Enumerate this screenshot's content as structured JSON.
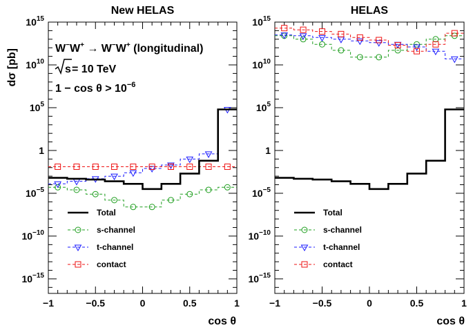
{
  "figure": {
    "ylabel": "dσ [pb]",
    "xlabel": "cos θ"
  },
  "annotations": {
    "process_left": "W",
    "process_left_sup": "−",
    "process_left2": "W",
    "process_left2_sup": "+",
    "arrow": " → ",
    "process_right": "W",
    "process_right_sup": "−",
    "process_right2": "W",
    "process_right2_sup": "+",
    "process_note": " (longitudinal)",
    "sqrt_s_label": "s",
    "energy_text": " = 10 TeV",
    "cut_text": "1 − cos θ > 10",
    "cut_exp": "−6"
  },
  "colors": {
    "total": "#000000",
    "s_channel": "#1e9e1e",
    "t_channel": "#1a1aff",
    "contact": "#ee1111"
  },
  "chart_data": [
    {
      "type": "line",
      "title": "New HELAS",
      "xlabel": "cos θ",
      "ylabel": "dσ [pb]",
      "xlim": [
        -1,
        1
      ],
      "ylim_log10": [
        -16.7,
        15
      ],
      "log_y": true,
      "x_ticks": [
        "−1",
        "−0.5",
        "0",
        "0.5",
        "1"
      ],
      "y_ticks": [
        {
          "value": 15,
          "label": "10",
          "exp": "15"
        },
        {
          "value": 10,
          "label": "10",
          "exp": "10"
        },
        {
          "value": 5,
          "label": "10",
          "exp": "5"
        },
        {
          "value": 0,
          "label": "1",
          "exp": ""
        },
        {
          "value": -5,
          "label": "10",
          "exp": "−5"
        },
        {
          "value": -10,
          "label": "10",
          "exp": "−10"
        },
        {
          "value": -15,
          "label": "10",
          "exp": "−15"
        }
      ],
      "bin_edges": [
        -1,
        -0.8,
        -0.6,
        -0.4,
        -0.2,
        0,
        0.2,
        0.4,
        0.6,
        0.8,
        1
      ],
      "series": [
        {
          "name": "Total",
          "key": "total",
          "style": "solid",
          "marker": "none",
          "log10_values": [
            -3.2,
            -3.3,
            -3.4,
            -3.6,
            -3.9,
            -4.5,
            -3.9,
            -2.7,
            -1.2,
            4.8
          ]
        },
        {
          "name": "s-channel",
          "key": "s_channel",
          "style": "dashed",
          "marker": "circle",
          "log10_values": [
            -4.3,
            -4.6,
            -5.1,
            -5.8,
            -6.6,
            -6.6,
            -5.8,
            -5.1,
            -4.6,
            -4.3
          ]
        },
        {
          "name": "t-channel",
          "key": "t_channel",
          "style": "dashed",
          "marker": "tri-down",
          "log10_values": [
            -3.9,
            -3.6,
            -3.3,
            -3.0,
            -2.6,
            -2.1,
            -1.7,
            -1.0,
            -0.4,
            4.8
          ]
        },
        {
          "name": "contact",
          "key": "contact",
          "style": "dashed",
          "marker": "square",
          "log10_values": [
            -1.9,
            -1.9,
            -1.9,
            -1.9,
            -1.9,
            -1.9,
            -1.9,
            -1.9,
            -1.9,
            -1.9
          ]
        }
      ],
      "legend_position": "bottom-left"
    },
    {
      "type": "line",
      "title": "HELAS",
      "xlabel": "cos θ",
      "ylabel": "",
      "xlim": [
        -1,
        1
      ],
      "ylim_log10": [
        -16.7,
        15
      ],
      "log_y": true,
      "x_ticks": [
        "−1",
        "−0.5",
        "0",
        "0.5",
        "1"
      ],
      "y_ticks": [
        {
          "value": 15,
          "label": "10",
          "exp": "15"
        },
        {
          "value": 10,
          "label": "10",
          "exp": "10"
        },
        {
          "value": 5,
          "label": "10",
          "exp": "5"
        },
        {
          "value": 0,
          "label": "1",
          "exp": ""
        },
        {
          "value": -5,
          "label": "10",
          "exp": "−5"
        },
        {
          "value": -10,
          "label": "10",
          "exp": "−10"
        },
        {
          "value": -15,
          "label": "10",
          "exp": "−15"
        }
      ],
      "bin_edges": [
        -1,
        -0.8,
        -0.6,
        -0.4,
        -0.2,
        0,
        0.2,
        0.4,
        0.6,
        0.8,
        1
      ],
      "series": [
        {
          "name": "Total",
          "key": "total",
          "style": "solid",
          "marker": "none",
          "log10_values": [
            -3.2,
            -3.3,
            -3.4,
            -3.6,
            -3.9,
            -4.5,
            -3.9,
            -2.7,
            -1.2,
            4.8
          ]
        },
        {
          "name": "s-channel",
          "key": "s_channel",
          "style": "dashed",
          "marker": "circle",
          "log10_values": [
            13.4,
            13.0,
            12.4,
            11.7,
            10.9,
            10.9,
            11.7,
            12.4,
            13.0,
            13.4
          ]
        },
        {
          "name": "t-channel",
          "key": "t_channel",
          "style": "dashed",
          "marker": "tri-down",
          "log10_values": [
            13.5,
            13.4,
            13.2,
            13.0,
            12.8,
            12.6,
            12.4,
            12.1,
            11.6,
            10.7
          ]
        },
        {
          "name": "contact",
          "key": "contact",
          "style": "dashed",
          "marker": "square",
          "log10_values": [
            14.3,
            14.1,
            13.9,
            13.6,
            13.2,
            12.9,
            12.3,
            11.6,
            12.4,
            13.7
          ]
        }
      ],
      "legend_position": "bottom-left"
    }
  ]
}
